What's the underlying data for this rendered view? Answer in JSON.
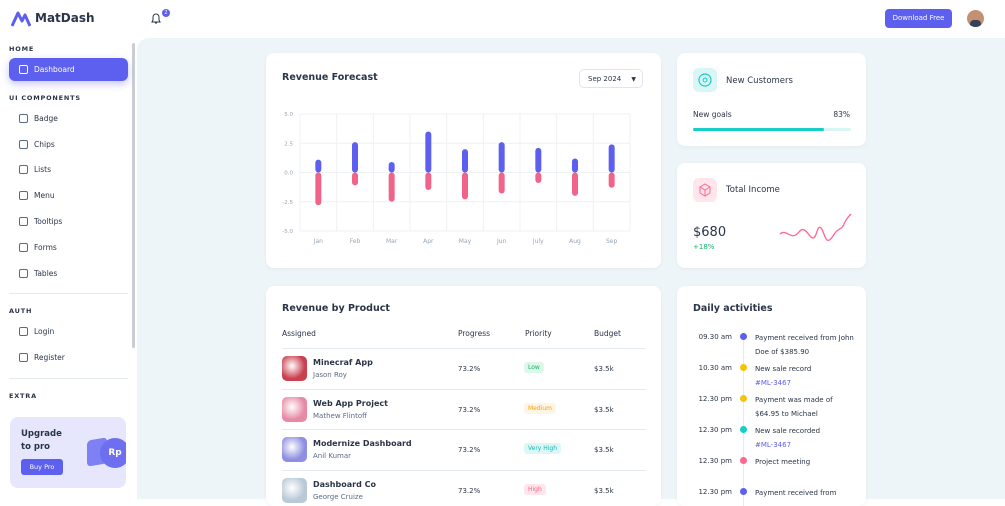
{
  "header": {
    "brand": "MatDash",
    "notifications": 2,
    "download": "Download Free"
  },
  "sidebar": {
    "sections": [
      {
        "title": "HOME",
        "items": [
          "Dashboard"
        ]
      },
      {
        "title": "UI COMPONENTS",
        "items": [
          "Badge",
          "Chips",
          "Lists",
          "Menu",
          "Tooltips",
          "Forms",
          "Tables"
        ]
      },
      {
        "title": "AUTH",
        "items": [
          "Login",
          "Register"
        ]
      },
      {
        "title": "EXTRA",
        "items": []
      }
    ],
    "promo": {
      "title": "Upgrade to pro",
      "button": "Buy Pro",
      "badge": "Rp"
    }
  },
  "period_select": "Sep 2024",
  "chart_data": {
    "type": "bar",
    "title": "Revenue Forecast",
    "categories": [
      "Jan",
      "Feb",
      "Mar",
      "Apr",
      "May",
      "Jun",
      "July",
      "Aug",
      "Sep"
    ],
    "series": [
      {
        "color": "#5d5fef",
        "values": [
          1.1,
          2.6,
          0.9,
          3.5,
          2.0,
          2.6,
          2.1,
          1.2,
          2.4
        ]
      },
      {
        "color": "#f0648a",
        "values": [
          -2.8,
          -1.1,
          -2.5,
          -1.5,
          -2.3,
          -1.8,
          -0.9,
          -2.0,
          -1.3
        ]
      }
    ],
    "ylim": [
      -5,
      5
    ],
    "yticks": [
      {
        "value": 5,
        "label": "5.0"
      },
      {
        "value": 2.5,
        "label": "2.5"
      },
      {
        "value": 0,
        "label": "0.0"
      },
      {
        "value": -2.5,
        "label": "-2.5"
      },
      {
        "value": -5,
        "label": "-5.0"
      }
    ],
    "grid": true
  },
  "new_customers": {
    "title": "New Customers",
    "goal_label": "New goals",
    "goal_value": 83,
    "goal_value_label": "83%"
  },
  "total_income": {
    "title": "Total Income",
    "amount": "$680",
    "change": "+18%"
  },
  "products": {
    "title": "Revenue by Product",
    "columns": [
      "Assigned",
      "Progress",
      "Priority",
      "Budget"
    ],
    "rows": [
      {
        "name": "Minecraf App",
        "person": "Jason Roy",
        "progress": "73.2%",
        "priority": "Low",
        "priority_color": "#13b26a",
        "priority_bg": "#dff7e9",
        "budget": "$3.5k",
        "thumb": "#c9404f"
      },
      {
        "name": "Web App Project",
        "person": "Mathew Flintoff",
        "progress": "73.2%",
        "priority": "Medium",
        "priority_color": "#f3a20a",
        "priority_bg": "#fef5e5",
        "budget": "$3.5k",
        "thumb": "#e78aa6"
      },
      {
        "name": "Modernize Dashboard",
        "person": "Anil Kumar",
        "progress": "73.2%",
        "priority": "Very High",
        "priority_color": "#0fb9b3",
        "priority_bg": "#dcf7f6",
        "budget": "$3.5k",
        "thumb": "#8e8fe0"
      },
      {
        "name": "Dashboard Co",
        "person": "George Cruize",
        "progress": "73.2%",
        "priority": "High",
        "priority_color": "#ff5c85",
        "priority_bg": "#ffe5ec",
        "budget": "$3.5k",
        "thumb": "#b9c9d6"
      }
    ]
  },
  "activities": {
    "title": "Daily activities",
    "items": [
      {
        "time": "09.30 am",
        "text": "Payment received from John Doe of $385.90",
        "color": "#5d5fef"
      },
      {
        "time": "10.30 am",
        "text": "New sale record",
        "link": "#ML-3467",
        "color": "#f8c20a"
      },
      {
        "time": "12.30 pm",
        "text": "Payment was made of $64.95 to Michael",
        "color": "#f8c20a"
      },
      {
        "time": "12.30 pm",
        "text": "New sale recorded",
        "link": "#ML-3467",
        "color": "#16cdc7"
      },
      {
        "time": "12.30 pm",
        "text": "Project meeting",
        "color": "#ff6692"
      },
      {
        "time": "12.30 pm",
        "text": "Payment received from",
        "color": "#5d5fef"
      }
    ]
  }
}
